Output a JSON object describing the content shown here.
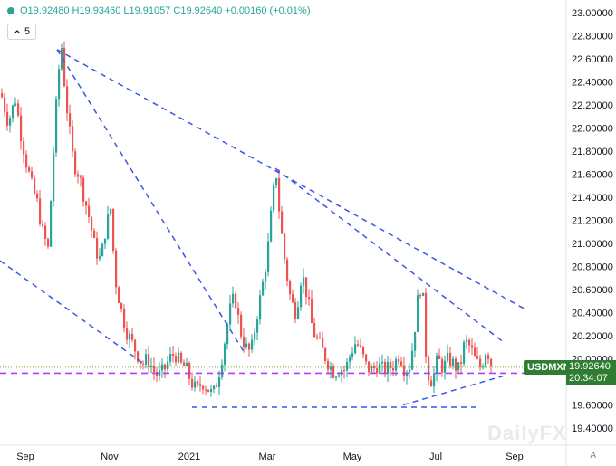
{
  "ohlc": {
    "text": "O19.92480  H19.93460  L19.91057  C19.92640  +0.00160 (+0.01%)",
    "dot_color": "#26a69a"
  },
  "indicator_toggle": {
    "label": "5",
    "icon": "chevron-up-icon"
  },
  "symbol_tag": {
    "label": "USDMXN",
    "price": "19.92640",
    "countdown": "20:34:07",
    "color": "#2e7d32"
  },
  "watermark": "DailyFX",
  "scale_mode": "A",
  "chart_data": {
    "type": "candlestick",
    "title": "",
    "y_axis": {
      "ticks": [
        "23.00000",
        "22.80000",
        "22.60000",
        "22.40000",
        "22.20000",
        "22.00000",
        "21.80000",
        "21.60000",
        "21.40000",
        "21.20000",
        "21.00000",
        "20.80000",
        "20.60000",
        "20.40000",
        "20.20000",
        "20.00000",
        "19.80000",
        "19.60000",
        "19.40000"
      ],
      "range": [
        19.4,
        23.0
      ]
    },
    "x_axis": {
      "ticks": [
        "Sep",
        "Nov",
        "2021",
        "Mar",
        "May",
        "Jul",
        "Sep"
      ]
    },
    "colors": {
      "up": "#26a69a",
      "down": "#ef5350"
    },
    "close_series": [
      [
        0,
        22.3
      ],
      [
        8,
        22.05
      ],
      [
        16,
        22.25
      ],
      [
        22,
        21.95
      ],
      [
        28,
        21.7
      ],
      [
        34,
        21.5
      ],
      [
        40,
        21.35
      ],
      [
        46,
        21.1
      ],
      [
        52,
        20.95
      ],
      [
        58,
        21.8
      ],
      [
        63,
        22.45
      ],
      [
        67,
        22.7
      ],
      [
        71,
        22.3
      ],
      [
        76,
        21.95
      ],
      [
        80,
        21.7
      ],
      [
        86,
        21.6
      ],
      [
        92,
        21.4
      ],
      [
        98,
        21.2
      ],
      [
        104,
        20.95
      ],
      [
        110,
        20.85
      ],
      [
        116,
        21.15
      ],
      [
        121,
        21.3
      ],
      [
        126,
        20.7
      ],
      [
        132,
        20.45
      ],
      [
        138,
        20.25
      ],
      [
        144,
        20.15
      ],
      [
        150,
        20.05
      ],
      [
        156,
        19.95
      ],
      [
        162,
        20.0
      ],
      [
        168,
        19.9
      ],
      [
        174,
        19.85
      ],
      [
        180,
        19.9
      ],
      [
        186,
        20.0
      ],
      [
        192,
        20.05
      ],
      [
        198,
        19.95
      ],
      [
        204,
        19.92
      ],
      [
        210,
        19.8
      ],
      [
        216,
        19.72
      ],
      [
        222,
        19.8
      ],
      [
        228,
        19.75
      ],
      [
        234,
        19.68
      ],
      [
        240,
        19.85
      ],
      [
        246,
        20.1
      ],
      [
        252,
        20.4
      ],
      [
        258,
        20.55
      ],
      [
        264,
        20.25
      ],
      [
        270,
        20.1
      ],
      [
        276,
        20.05
      ],
      [
        282,
        20.35
      ],
      [
        288,
        20.6
      ],
      [
        294,
        20.9
      ],
      [
        300,
        21.4
      ],
      [
        304,
        21.6
      ],
      [
        308,
        21.2
      ],
      [
        314,
        20.8
      ],
      [
        320,
        20.5
      ],
      [
        326,
        20.4
      ],
      [
        332,
        20.75
      ],
      [
        338,
        20.55
      ],
      [
        344,
        20.25
      ],
      [
        350,
        20.15
      ],
      [
        356,
        20.05
      ],
      [
        362,
        19.95
      ],
      [
        368,
        19.88
      ],
      [
        374,
        19.92
      ],
      [
        380,
        19.9
      ],
      [
        386,
        20.05
      ],
      [
        392,
        20.15
      ],
      [
        398,
        20.05
      ],
      [
        404,
        19.92
      ],
      [
        410,
        19.9
      ],
      [
        416,
        19.95
      ],
      [
        422,
        19.9
      ],
      [
        428,
        19.92
      ],
      [
        434,
        19.95
      ],
      [
        440,
        20.05
      ],
      [
        446,
        19.9
      ],
      [
        452,
        19.95
      ],
      [
        458,
        20.35
      ],
      [
        462,
        20.65
      ],
      [
        466,
        20.5
      ],
      [
        470,
        19.9
      ],
      [
        476,
        19.8
      ],
      [
        482,
        20.0
      ],
      [
        488,
        19.92
      ],
      [
        494,
        20.0
      ],
      [
        500,
        19.95
      ],
      [
        506,
        19.9
      ],
      [
        512,
        20.15
      ],
      [
        518,
        20.1
      ],
      [
        524,
        19.98
      ],
      [
        530,
        19.92
      ],
      [
        536,
        20.1
      ],
      [
        542,
        19.93
      ]
    ],
    "trendlines": [
      {
        "style": "dashed",
        "color": "#3a56e8",
        "from": [
          63,
          22.68
        ],
        "to": [
          582,
          20.42
        ]
      },
      {
        "style": "dashed",
        "color": "#3a56e8",
        "from": [
          63,
          22.68
        ],
        "to": [
          270,
          20.05
        ]
      },
      {
        "style": "dashed",
        "color": "#3a56e8",
        "from": [
          304,
          21.65
        ],
        "to": [
          555,
          20.15
        ]
      },
      {
        "style": "dashed",
        "color": "#3a56e8",
        "from": [
          0,
          20.85
        ],
        "to": [
          160,
          19.95
        ]
      },
      {
        "style": "dashed",
        "color": "#3a56e8",
        "from": [
          212,
          19.58
        ],
        "to": [
          527,
          19.58
        ]
      },
      {
        "style": "dashed",
        "color": "#3a56e8",
        "from": [
          445,
          19.6
        ],
        "to": [
          555,
          19.85
        ]
      }
    ],
    "horizontal_levels": [
      {
        "style": "dashed",
        "color": "#b03cff",
        "y": 19.875
      },
      {
        "style": "dotted",
        "color": "#7cb342",
        "y": 19.9264
      }
    ]
  }
}
